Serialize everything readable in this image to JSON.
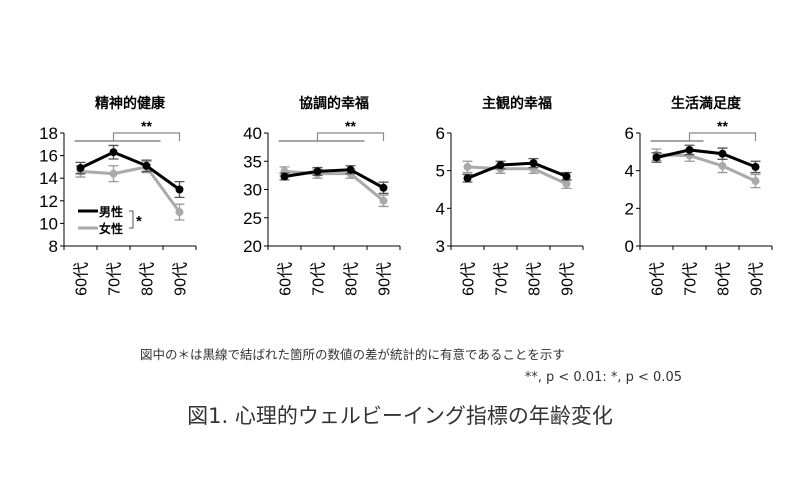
{
  "chart_data": [
    {
      "type": "line",
      "title": "精神的健康",
      "categories": [
        "60代",
        "70代",
        "80代",
        "90代"
      ],
      "ylim": [
        8,
        18
      ],
      "yticks": [
        8,
        10,
        12,
        14,
        16,
        18
      ],
      "series": [
        {
          "name": "男性",
          "color": "#000000",
          "values": [
            14.9,
            16.3,
            15.1,
            13.0
          ],
          "err": [
            0.5,
            0.6,
            0.5,
            0.7
          ]
        },
        {
          "name": "女性",
          "color": "#aaaaaa",
          "values": [
            14.6,
            14.4,
            15.0,
            11.0
          ],
          "err": [
            0.5,
            0.7,
            0.5,
            0.7
          ]
        }
      ],
      "brackets": [
        {
          "from": "60代",
          "to": "80代",
          "label": ""
        },
        {
          "from": "70代",
          "to": "90代",
          "label": "**"
        }
      ],
      "legend": {
        "placement": "bottom-left",
        "significance": "*"
      }
    },
    {
      "type": "line",
      "title": "協調的幸福",
      "categories": [
        "60代",
        "70代",
        "80代",
        "90代"
      ],
      "ylim": [
        20,
        40
      ],
      "yticks": [
        20,
        25,
        30,
        35,
        40
      ],
      "series": [
        {
          "name": "男性",
          "color": "#000000",
          "values": [
            32.3,
            33.2,
            33.5,
            30.3
          ],
          "err": [
            0.6,
            0.7,
            0.7,
            1.0
          ]
        },
        {
          "name": "女性",
          "color": "#aaaaaa",
          "values": [
            33.2,
            32.8,
            32.8,
            28.0
          ],
          "err": [
            0.8,
            0.8,
            0.8,
            1.0
          ]
        }
      ],
      "brackets": [
        {
          "from": "60代",
          "to": "80代",
          "label": ""
        },
        {
          "from": "70代",
          "to": "90代",
          "label": "**"
        }
      ]
    },
    {
      "type": "line",
      "title": "主観的幸福",
      "categories": [
        "60代",
        "70代",
        "80代",
        "90代"
      ],
      "ylim": [
        3,
        6
      ],
      "yticks": [
        3,
        4,
        5,
        6
      ],
      "series": [
        {
          "name": "男性",
          "color": "#000000",
          "values": [
            4.8,
            5.15,
            5.2,
            4.85
          ],
          "err": [
            0.1,
            0.1,
            0.12,
            0.1
          ]
        },
        {
          "name": "女性",
          "color": "#aaaaaa",
          "values": [
            5.1,
            5.05,
            5.05,
            4.65
          ],
          "err": [
            0.15,
            0.12,
            0.12,
            0.12
          ]
        }
      ],
      "brackets": []
    },
    {
      "type": "line",
      "title": "生活満足度",
      "categories": [
        "60代",
        "70代",
        "80代",
        "90代"
      ],
      "ylim": [
        0,
        6
      ],
      "yticks": [
        0,
        2,
        4,
        6
      ],
      "series": [
        {
          "name": "男性",
          "color": "#000000",
          "values": [
            4.7,
            5.1,
            4.9,
            4.2
          ],
          "err": [
            0.25,
            0.25,
            0.3,
            0.3
          ]
        },
        {
          "name": "女性",
          "color": "#aaaaaa",
          "values": [
            4.85,
            4.8,
            4.25,
            3.45
          ],
          "err": [
            0.3,
            0.3,
            0.35,
            0.35
          ]
        }
      ],
      "brackets": [
        {
          "from": "60代",
          "to": "70代",
          "label": ""
        },
        {
          "from": "70代",
          "to": "90代",
          "label": "**"
        }
      ]
    }
  ],
  "notes": {
    "line1": "図中の＊は黒線で結ばれた箇所の数値の差が統計的に有意であることを示す",
    "line2": "**, p < 0.01: *, p < 0.05"
  },
  "caption": "図1. 心理的ウェルビーイング指標の年齢変化"
}
